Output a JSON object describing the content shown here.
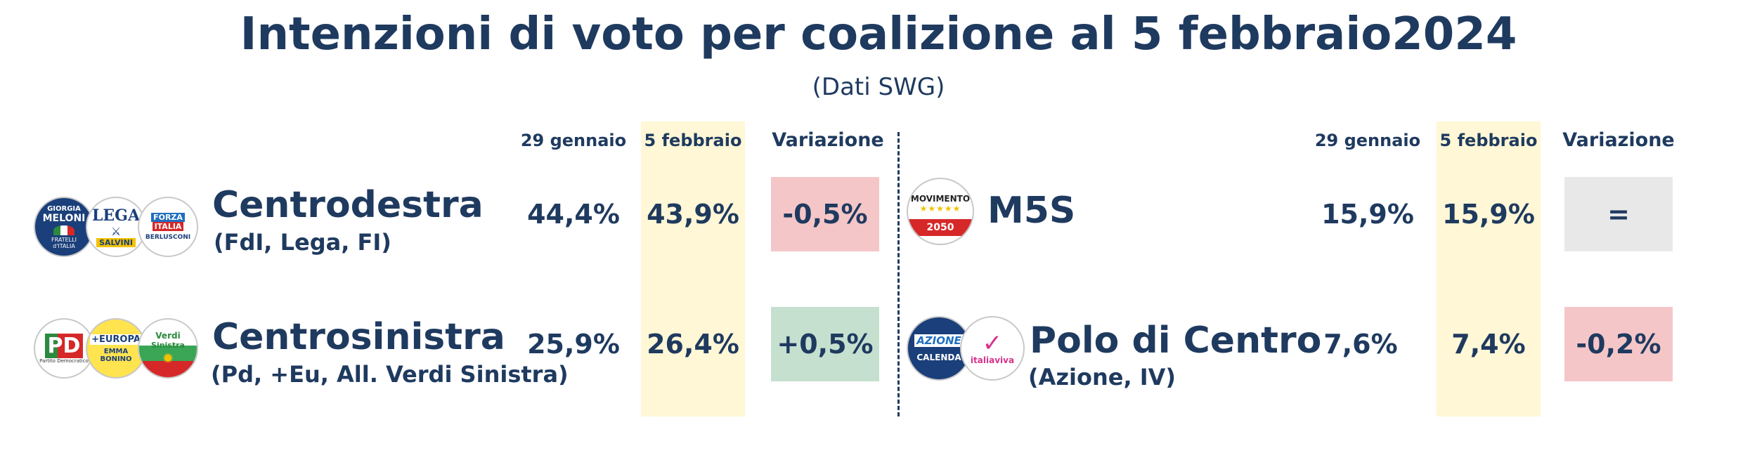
{
  "header": {
    "title": "Intenzioni di voto per coalizione al 5  febbraio2024",
    "subtitle": "(Dati SWG)"
  },
  "columns": {
    "prev": "29 gennaio",
    "curr": "5 febbraio",
    "change": "Variazione"
  },
  "colors": {
    "negative": "#f5c6c8",
    "positive": "#c5e0cf",
    "neutral": "#e8e8e8",
    "highlight": "#fff7d6",
    "text": "#1f3a5f"
  },
  "logos": {
    "fdi_line1": "GIORGIA",
    "fdi_line2": "MELONI",
    "fdi_line3": "FRATELLI",
    "fdi_line4": "d'ITALIA",
    "lega_line1": "LEGA",
    "lega_line2": "SALVINI",
    "fi_line1": "FORZA",
    "fi_line2": "ITALIA",
    "fi_line3": "BERLUSCONI",
    "pd_line1": "PD",
    "pd_line2": "Partito Democratico",
    "eu_line1": "+EUROPA",
    "eu_line2": "EMMA",
    "eu_line3": "BONINO",
    "avs_line1": "Verdi",
    "avs_line2": "Sinistra",
    "m5s_line1": "MOVIMENTO",
    "m5s_line2": "2050",
    "az_line1": "AZIONE",
    "az_line2": "CALENDA",
    "iv_line1": "italiaviva"
  },
  "chart_data": {
    "type": "table",
    "title": "Intenzioni di voto per coalizione al 5  febbraio2024",
    "subtitle": "(Dati SWG)",
    "columns": [
      "29 gennaio",
      "5 febbraio",
      "Variazione"
    ],
    "rows": [
      {
        "name": "Centrodestra",
        "detail": "(FdI, Lega, FI)",
        "prev": "44,4%",
        "curr": "43,9%",
        "change": "-0,5%",
        "prev_value": 44.4,
        "curr_value": 43.9,
        "change_value": -0.5,
        "trend": "negative"
      },
      {
        "name": "Centrosinistra",
        "detail": "(Pd, +Eu, All. Verdi Sinistra)",
        "prev": "25,9%",
        "curr": "26,4%",
        "change": "+0,5%",
        "prev_value": 25.9,
        "curr_value": 26.4,
        "change_value": 0.5,
        "trend": "positive"
      },
      {
        "name": "M5S",
        "detail": "",
        "prev": "15,9%",
        "curr": "15,9%",
        "change": "=",
        "prev_value": 15.9,
        "curr_value": 15.9,
        "change_value": 0,
        "trend": "neutral"
      },
      {
        "name": "Polo di Centro",
        "detail": "(Azione, IV)",
        "prev": "7,6%",
        "curr": "7,4%",
        "change": "-0,2%",
        "prev_value": 7.6,
        "curr_value": 7.4,
        "change_value": -0.2,
        "trend": "negative"
      }
    ]
  }
}
